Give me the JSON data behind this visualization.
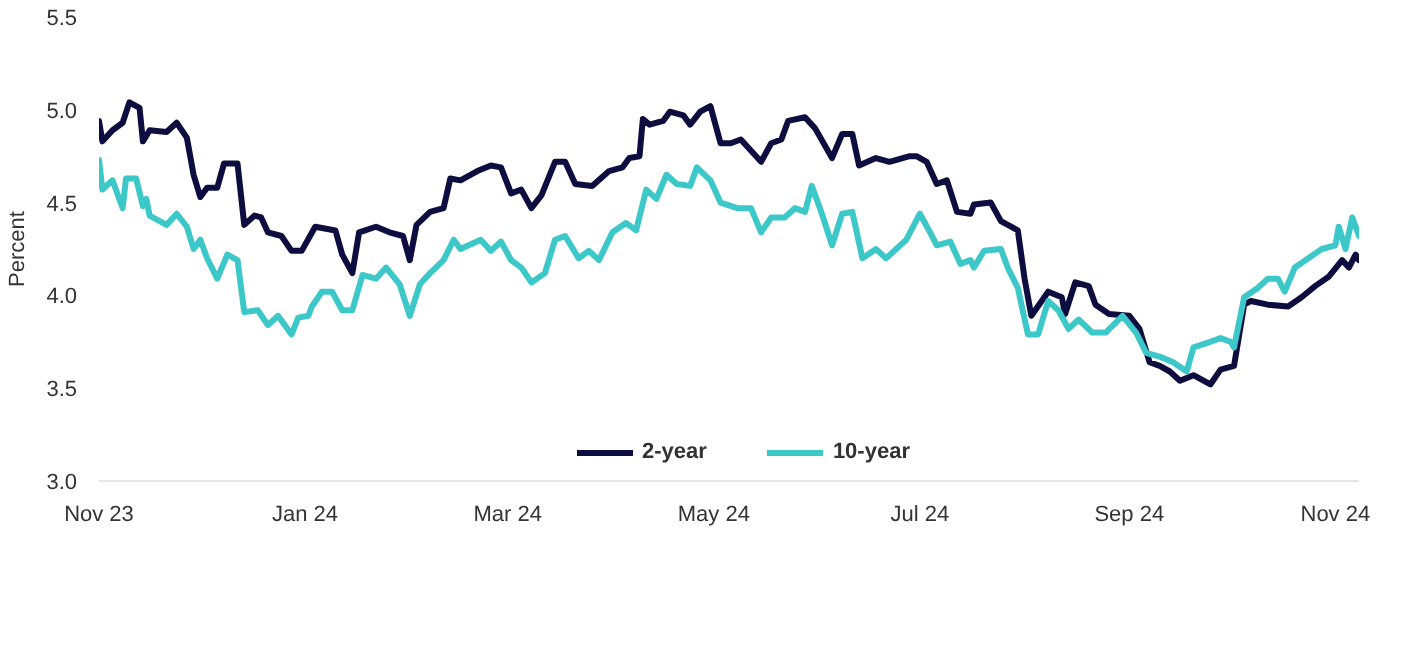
{
  "chart_data": {
    "type": "line",
    "ylabel": "Percent",
    "xticks": [
      {
        "value": "2023-11-01",
        "label": "Nov 23"
      },
      {
        "value": "2024-01-01",
        "label": "Jan 24"
      },
      {
        "value": "2024-03-01",
        "label": "Mar 24"
      },
      {
        "value": "2024-05-01",
        "label": "May 24"
      },
      {
        "value": "2024-07-01",
        "label": "Jul 24"
      },
      {
        "value": "2024-09-01",
        "label": "Sep 24"
      },
      {
        "value": "2024-11-01",
        "label": "Nov 24"
      }
    ],
    "ylim": [
      3.0,
      5.5
    ],
    "yticks": [
      {
        "value": 3,
        "label": "3.0"
      },
      {
        "value": 3.5,
        "label": "3.5"
      },
      {
        "value": 4,
        "label": "4.0"
      },
      {
        "value": 4.5,
        "label": "4.5"
      },
      {
        "value": 5,
        "label": "5.0"
      },
      {
        "value": 5.5,
        "label": "5.5"
      }
    ],
    "xlim": [
      "2023-11-01",
      "2024-11-08"
    ],
    "legend": "bottom",
    "line_style": "solid",
    "series": [
      {
        "name": "2-year",
        "color": "#0d0d3f",
        "x": [
          "2023-11-01",
          "2023-11-02",
          "2023-11-05",
          "2023-11-08",
          "2023-11-10",
          "2023-11-13",
          "2023-11-14",
          "2023-11-16",
          "2023-11-21",
          "2023-11-24",
          "2023-11-27",
          "2023-11-29",
          "2023-12-01",
          "2023-12-03",
          "2023-12-06",
          "2023-12-08",
          "2023-12-12",
          "2023-12-14",
          "2023-12-17",
          "2023-12-19",
          "2023-12-21",
          "2023-12-25",
          "2023-12-28",
          "2023-12-31",
          "2024-01-04",
          "2024-01-10",
          "2024-01-12",
          "2024-01-15",
          "2024-01-17",
          "2024-01-22",
          "2024-01-26",
          "2024-01-30",
          "2024-02-01",
          "2024-02-03",
          "2024-02-07",
          "2024-02-11",
          "2024-02-13",
          "2024-02-16",
          "2024-02-21",
          "2024-02-25",
          "2024-02-28",
          "2024-03-02",
          "2024-03-05",
          "2024-03-08",
          "2024-03-11",
          "2024-03-15",
          "2024-03-18",
          "2024-03-21",
          "2024-03-26",
          "2024-03-31",
          "2024-04-04",
          "2024-04-06",
          "2024-04-09",
          "2024-04-10",
          "2024-04-12",
          "2024-04-16",
          "2024-04-18",
          "2024-04-22",
          "2024-04-24",
          "2024-04-27",
          "2024-04-30",
          "2024-05-03",
          "2024-05-06",
          "2024-05-09",
          "2024-05-15",
          "2024-05-18",
          "2024-05-21",
          "2024-05-23",
          "2024-05-28",
          "2024-05-31",
          "2024-06-05",
          "2024-06-08",
          "2024-06-11",
          "2024-06-13",
          "2024-06-18",
          "2024-06-22",
          "2024-06-28",
          "2024-06-30",
          "2024-07-03",
          "2024-07-06",
          "2024-07-09",
          "2024-07-12",
          "2024-07-16",
          "2024-07-17",
          "2024-07-22",
          "2024-07-25",
          "2024-07-28",
          "2024-07-30",
          "2024-08-01",
          "2024-08-03",
          "2024-08-08",
          "2024-08-12",
          "2024-08-13",
          "2024-08-16",
          "2024-08-20",
          "2024-08-22",
          "2024-08-26",
          "2024-09-01",
          "2024-09-04",
          "2024-09-07",
          "2024-09-10",
          "2024-09-13",
          "2024-09-16",
          "2024-09-20",
          "2024-09-25",
          "2024-09-28",
          "2024-10-02",
          "2024-10-05",
          "2024-10-07",
          "2024-10-12",
          "2024-10-18",
          "2024-10-22",
          "2024-10-26",
          "2024-10-30",
          "2024-11-03",
          "2024-11-05",
          "2024-11-07",
          "2024-11-08"
        ],
        "values": [
          4.94,
          4.83,
          4.89,
          4.93,
          5.04,
          5.01,
          4.83,
          4.89,
          4.88,
          4.93,
          4.85,
          4.65,
          4.53,
          4.58,
          4.58,
          4.71,
          4.71,
          4.38,
          4.43,
          4.42,
          4.34,
          4.32,
          4.24,
          4.24,
          4.37,
          4.35,
          4.22,
          4.12,
          4.34,
          4.37,
          4.34,
          4.32,
          4.19,
          4.38,
          4.45,
          4.47,
          4.63,
          4.62,
          4.67,
          4.7,
          4.69,
          4.55,
          4.57,
          4.47,
          4.54,
          4.72,
          4.72,
          4.6,
          4.59,
          4.67,
          4.69,
          4.74,
          4.75,
          4.95,
          4.92,
          4.94,
          4.99,
          4.97,
          4.92,
          4.99,
          5.02,
          4.82,
          4.82,
          4.84,
          4.72,
          4.82,
          4.84,
          4.94,
          4.96,
          4.9,
          4.74,
          4.87,
          4.87,
          4.7,
          4.74,
          4.72,
          4.75,
          4.75,
          4.72,
          4.6,
          4.62,
          4.45,
          4.44,
          4.49,
          4.5,
          4.4,
          4.37,
          4.35,
          4.09,
          3.89,
          4.02,
          3.99,
          3.9,
          4.07,
          4.05,
          3.95,
          3.9,
          3.89,
          3.82,
          3.64,
          3.62,
          3.59,
          3.54,
          3.57,
          3.52,
          3.6,
          3.62,
          3.95,
          3.97,
          3.95,
          3.94,
          3.99,
          4.05,
          4.1,
          4.19,
          4.15,
          4.22,
          4.19
        ]
      },
      {
        "name": "10-year",
        "color": "#3cc8c8",
        "x": [
          "2023-11-01",
          "2023-11-02",
          "2023-11-05",
          "2023-11-08",
          "2023-11-09",
          "2023-11-12",
          "2023-11-14",
          "2023-11-15",
          "2023-11-16",
          "2023-11-21",
          "2023-11-24",
          "2023-11-27",
          "2023-11-29",
          "2023-12-01",
          "2023-12-03",
          "2023-12-06",
          "2023-12-09",
          "2023-12-12",
          "2023-12-14",
          "2023-12-18",
          "2023-12-21",
          "2023-12-24",
          "2023-12-28",
          "2023-12-30",
          "2024-01-02",
          "2024-01-03",
          "2024-01-06",
          "2024-01-09",
          "2024-01-12",
          "2024-01-15",
          "2024-01-18",
          "2024-01-22",
          "2024-01-25",
          "2024-01-29",
          "2024-02-01",
          "2024-02-04",
          "2024-02-07",
          "2024-02-11",
          "2024-02-14",
          "2024-02-16",
          "2024-02-22",
          "2024-02-25",
          "2024-02-28",
          "2024-03-02",
          "2024-03-05",
          "2024-03-08",
          "2024-03-12",
          "2024-03-15",
          "2024-03-18",
          "2024-03-22",
          "2024-03-25",
          "2024-03-28",
          "2024-04-01",
          "2024-04-05",
          "2024-04-08",
          "2024-04-11",
          "2024-04-14",
          "2024-04-17",
          "2024-04-20",
          "2024-04-24",
          "2024-04-26",
          "2024-04-30",
          "2024-05-03",
          "2024-05-08",
          "2024-05-12",
          "2024-05-15",
          "2024-05-18",
          "2024-05-22",
          "2024-05-25",
          "2024-05-28",
          "2024-05-30",
          "2024-06-02",
          "2024-06-05",
          "2024-06-08",
          "2024-06-11",
          "2024-06-14",
          "2024-06-18",
          "2024-06-21",
          "2024-06-24",
          "2024-06-27",
          "2024-07-01",
          "2024-07-04",
          "2024-07-06",
          "2024-07-10",
          "2024-07-13",
          "2024-07-16",
          "2024-07-17",
          "2024-07-20",
          "2024-07-25",
          "2024-07-27",
          "2024-07-30",
          "2024-08-02",
          "2024-08-05",
          "2024-08-08",
          "2024-08-11",
          "2024-08-14",
          "2024-08-17",
          "2024-08-21",
          "2024-08-25",
          "2024-08-30",
          "2024-09-03",
          "2024-09-06",
          "2024-09-10",
          "2024-09-14",
          "2024-09-18",
          "2024-09-20",
          "2024-09-25",
          "2024-09-28",
          "2024-10-01",
          "2024-10-02",
          "2024-10-05",
          "2024-10-09",
          "2024-10-12",
          "2024-10-15",
          "2024-10-17",
          "2024-10-20",
          "2024-10-24",
          "2024-10-28",
          "2024-11-01",
          "2024-11-02",
          "2024-11-04",
          "2024-11-06",
          "2024-11-08"
        ],
        "values": [
          4.73,
          4.57,
          4.62,
          4.47,
          4.63,
          4.63,
          4.48,
          4.52,
          4.43,
          4.38,
          4.44,
          4.37,
          4.25,
          4.3,
          4.2,
          4.09,
          4.22,
          4.19,
          3.91,
          3.92,
          3.84,
          3.89,
          3.79,
          3.88,
          3.89,
          3.94,
          4.02,
          4.02,
          3.92,
          3.92,
          4.11,
          4.09,
          4.15,
          4.06,
          3.89,
          4.06,
          4.12,
          4.19,
          4.3,
          4.25,
          4.3,
          4.24,
          4.29,
          4.19,
          4.15,
          4.07,
          4.12,
          4.3,
          4.32,
          4.2,
          4.24,
          4.19,
          4.34,
          4.39,
          4.35,
          4.57,
          4.52,
          4.65,
          4.6,
          4.59,
          4.69,
          4.62,
          4.5,
          4.47,
          4.47,
          4.34,
          4.42,
          4.42,
          4.47,
          4.45,
          4.59,
          4.44,
          4.27,
          4.44,
          4.45,
          4.2,
          4.25,
          4.2,
          4.25,
          4.3,
          4.44,
          4.34,
          4.27,
          4.29,
          4.17,
          4.19,
          4.15,
          4.24,
          4.25,
          4.15,
          4.04,
          3.79,
          3.79,
          3.97,
          3.92,
          3.82,
          3.87,
          3.8,
          3.8,
          3.89,
          3.8,
          3.69,
          3.67,
          3.64,
          3.59,
          3.72,
          3.75,
          3.77,
          3.75,
          3.72,
          3.99,
          4.04,
          4.09,
          4.09,
          4.02,
          4.15,
          4.2,
          4.25,
          4.27,
          4.37,
          4.25,
          4.42,
          4.32
        ]
      }
    ]
  }
}
